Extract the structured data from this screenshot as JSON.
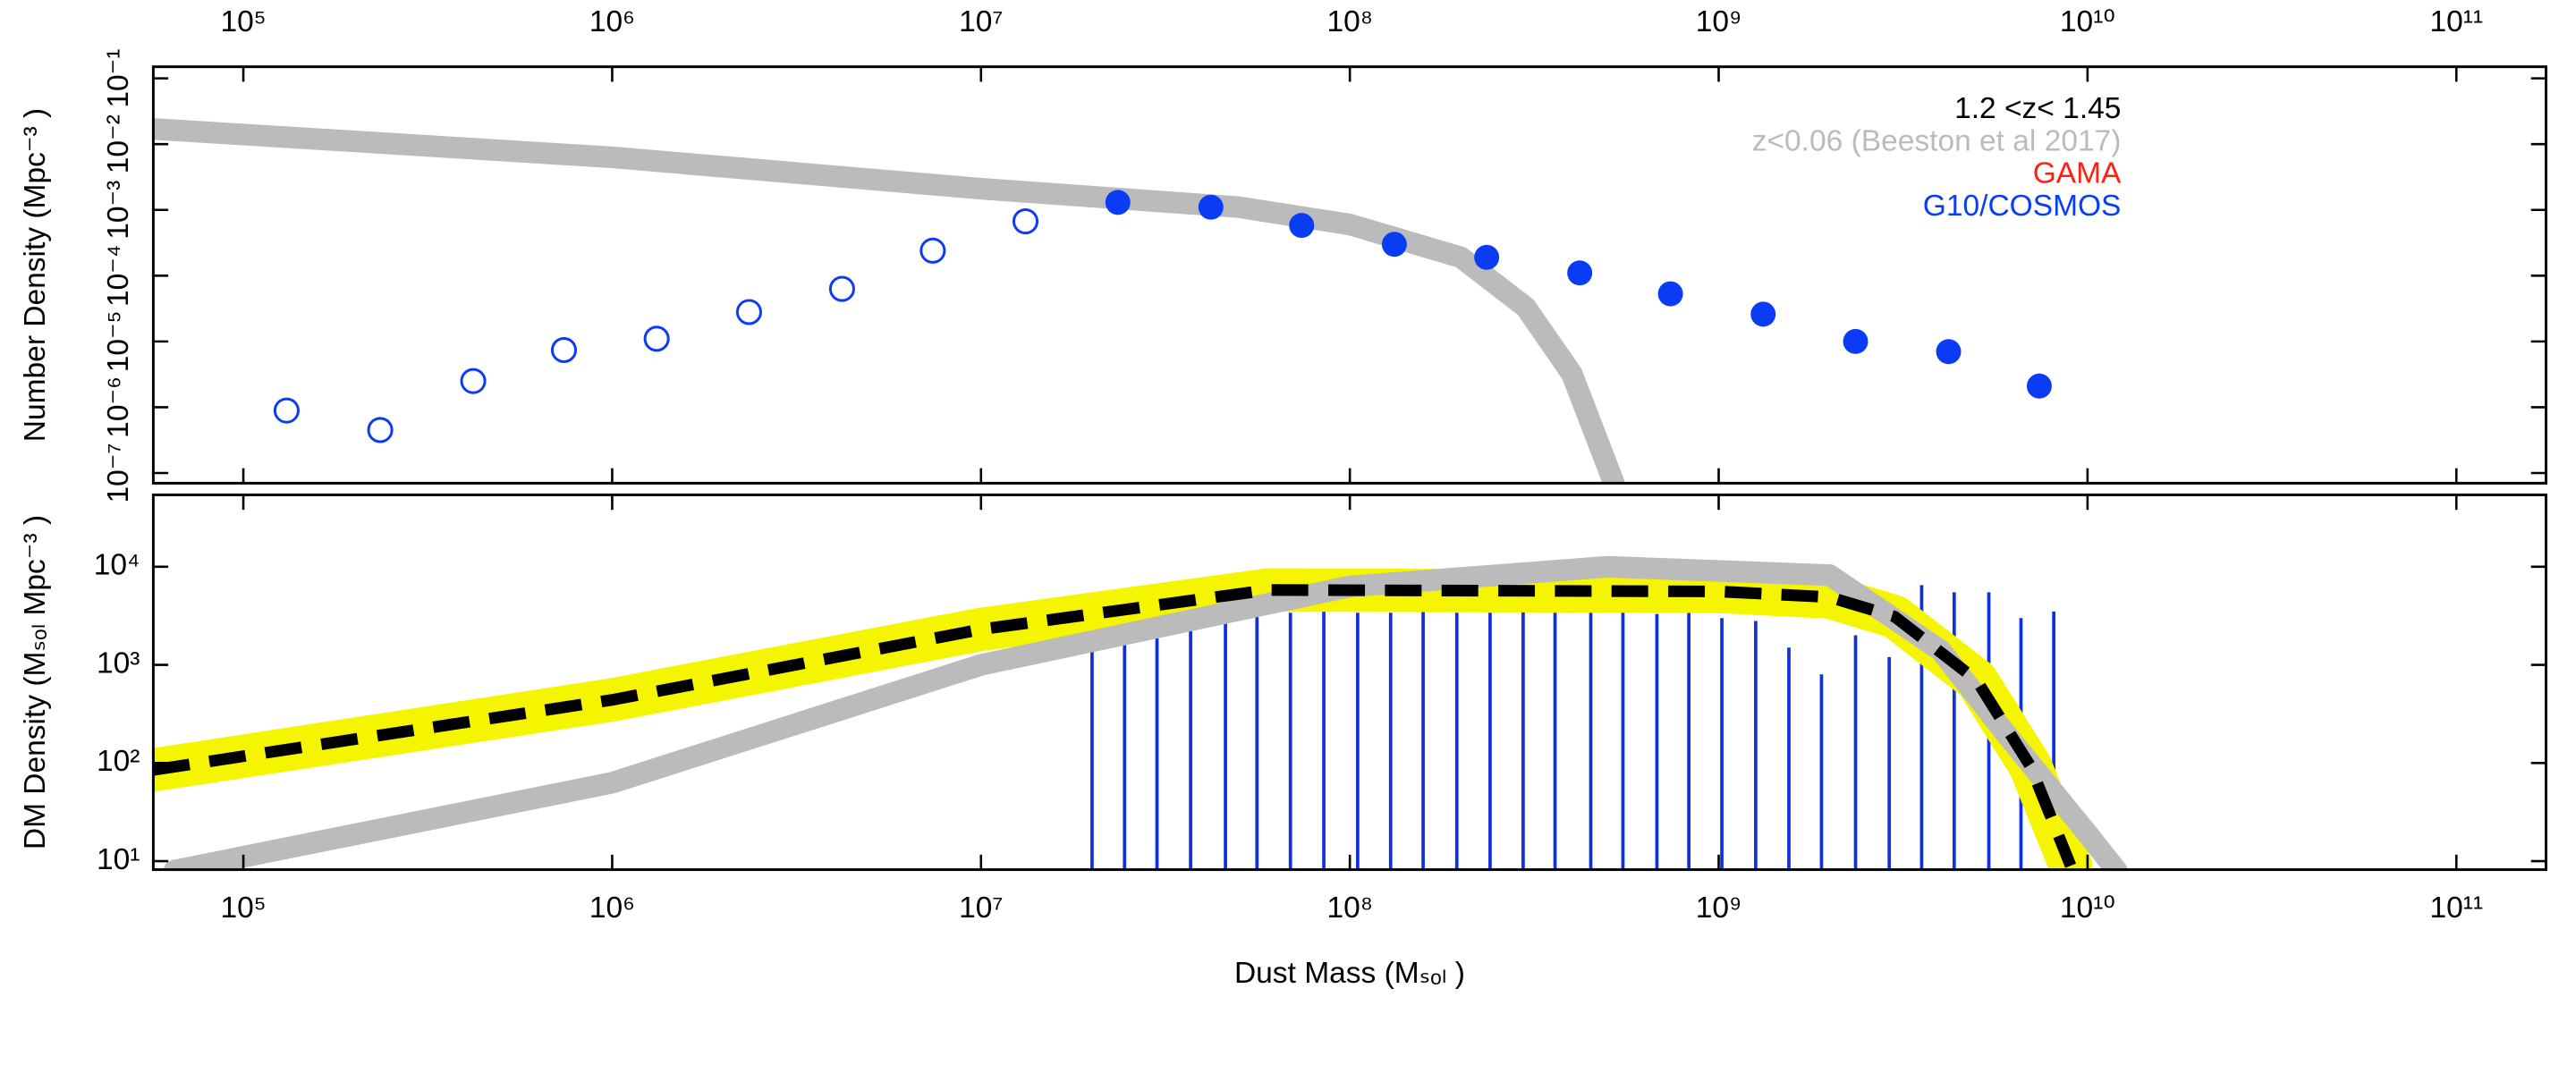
{
  "chart_data": [
    {
      "type": "scatter",
      "ylabel": "Number Density (Mpc⁻³ )",
      "xlog": true,
      "ylog": true,
      "xaxis_position": "top",
      "xlim": [
        57000,
        175000000000
      ],
      "ylim": [
        7e-08,
        0.15
      ],
      "xticks": [
        {
          "value": 100000,
          "label": "10⁵"
        },
        {
          "value": 1000000,
          "label": "10⁶"
        },
        {
          "value": 10000000,
          "label": "10⁷"
        },
        {
          "value": 100000000,
          "label": "10⁸"
        },
        {
          "value": 1000000000,
          "label": "10⁹"
        },
        {
          "value": 10000000000,
          "label": "10¹⁰"
        },
        {
          "value": 100000000000,
          "label": "10¹¹"
        }
      ],
      "yticks": [
        {
          "value": 1e-07,
          "label": "10⁻⁷"
        },
        {
          "value": 1e-06,
          "label": "10⁻⁶"
        },
        {
          "value": 1e-05,
          "label": "10⁻⁵"
        },
        {
          "value": 0.0001,
          "label": "10⁻⁴"
        },
        {
          "value": 0.001,
          "label": "10⁻³"
        },
        {
          "value": 0.01,
          "label": "10⁻²"
        },
        {
          "value": 0.1,
          "label": "10⁻¹"
        }
      ],
      "annotations": [
        {
          "text": "1.2 <z< 1.45",
          "color": "#000000"
        },
        {
          "text": "z<0.06 (Beeston et al 2017)",
          "color": "#bbbbbb"
        },
        {
          "text": "GAMA",
          "color": "#ff2010"
        },
        {
          "text": "G10/COSMOS",
          "color": "#0a3cf5"
        }
      ],
      "series": [
        {
          "style": "band",
          "color": "#bbbbbb",
          "x": [
            57000,
            100000,
            1000000,
            10000000,
            50000000,
            100000000,
            200000000,
            300000000,
            400000000,
            520000000
          ],
          "values": [
            0.017,
            0.014,
            0.0063,
            0.0021,
            0.0011,
            0.0006,
            0.00019,
            3.3e-05,
            3.2e-06,
            7e-08
          ]
        },
        {
          "style": "open-circle",
          "color": "#0a3cf5",
          "x": [
            131000,
            235000,
            420000,
            740000,
            1320000,
            2350000,
            4200000,
            7400000,
            13200000
          ],
          "values": [
            8.9e-07,
            4.5e-07,
            2.5e-06,
            7.4e-06,
            1.1e-05,
            2.8e-05,
            6.3e-05,
            0.00024,
            0.00067
          ]
        },
        {
          "style": "filled-circle",
          "color": "#0a3cf5",
          "x": [
            23500000,
            42000000,
            74000000,
            132000000,
            235000000,
            420000000,
            740000000,
            1320000000,
            2350000000,
            4200000000,
            7400000000
          ],
          "values": [
            0.0013,
            0.0011,
            0.00058,
            0.0003,
            0.00019,
            0.00011,
            5.3e-05,
            2.6e-05,
            1e-05,
            7e-06,
            2.1e-06
          ]
        }
      ]
    },
    {
      "type": "line",
      "ylabel": "DM Density (Mₛₒₗ Mpc⁻³ )",
      "xlabel": "Dust Mass (Mₛₒₗ )",
      "xlog": true,
      "ylog": true,
      "xaxis_position": "bottom",
      "xlim": [
        57000,
        175000000000
      ],
      "ylim": [
        8.2,
        54000
      ],
      "xticks": [
        {
          "value": 100000,
          "label": "10⁵"
        },
        {
          "value": 1000000,
          "label": "10⁶"
        },
        {
          "value": 10000000,
          "label": "10⁷"
        },
        {
          "value": 100000000,
          "label": "10⁸"
        },
        {
          "value": 1000000000,
          "label": "10⁹"
        },
        {
          "value": 10000000000,
          "label": "10¹⁰"
        },
        {
          "value": 100000000000,
          "label": "10¹¹"
        }
      ],
      "yticks": [
        {
          "value": 10,
          "label": "10¹"
        },
        {
          "value": 100,
          "label": "10²"
        },
        {
          "value": 1000,
          "label": "10³"
        },
        {
          "value": 10000,
          "label": "10⁴"
        }
      ],
      "series": [
        {
          "style": "spikes",
          "color": "#1030e0",
          "x": [
            20000000,
            24500000,
            30000000,
            37000000,
            46000000,
            56000000,
            69000000,
            85000000,
            105000000,
            129000000,
            158000000,
            195000000,
            240000000,
            295000000,
            360000000,
            450000000,
            550000000,
            680000000,
            830000000,
            1020000000,
            1260000000,
            1550000000,
            1900000000,
            2350000000,
            2900000000,
            3550000000,
            4350000000,
            5400000000,
            6600000000,
            8100000000
          ],
          "values": [
            3400,
            3400,
            3500,
            3400,
            3500,
            3400,
            3400,
            3500,
            3400,
            3400,
            3500,
            3400,
            3400,
            3500,
            3400,
            3400,
            3500,
            3300,
            3400,
            3000,
            2800,
            1500,
            800,
            2000,
            1200,
            6500,
            5500,
            5500,
            3000,
            3500
          ]
        },
        {
          "style": "broad-band",
          "color": "#f5f500",
          "x": [
            57000,
            1000000,
            10000000,
            60000000,
            1000000000,
            2000000000,
            3000000000,
            5000000000,
            7000000000,
            9000000000
          ],
          "values": [
            85,
            440,
            2300,
            5800,
            5600,
            4900,
            3100,
            700,
            93,
            9
          ]
        },
        {
          "style": "band",
          "color": "#bbbbbb",
          "x": [
            65000,
            1000000,
            10000000,
            100000000,
            500000000,
            2000000000,
            4000000000,
            6000000000,
            10000000000,
            12000000000
          ],
          "values": [
            8,
            63,
            1000,
            6300,
            10000,
            8200,
            1400,
            200,
            19,
            8
          ]
        },
        {
          "style": "dashed-line",
          "color": "#000000",
          "x": [
            57000,
            1000000,
            10000000,
            60000000,
            1000000000,
            2000000000,
            3000000000,
            5000000000,
            7000000000,
            9000000000
          ],
          "values": [
            85,
            440,
            2300,
            5800,
            5600,
            4900,
            3100,
            700,
            93,
            9
          ]
        }
      ]
    }
  ]
}
